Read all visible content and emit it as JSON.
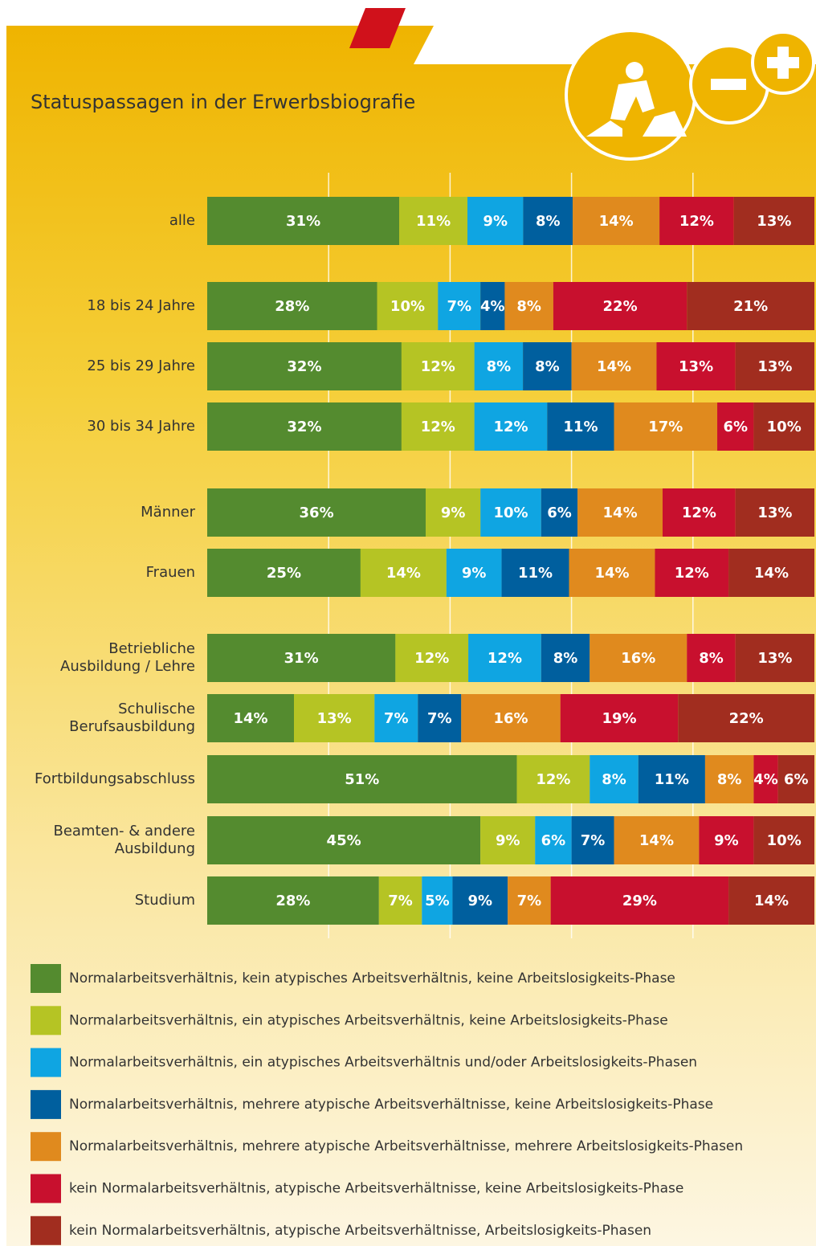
{
  "chart_data": {
    "type": "bar",
    "orientation": "horizontal",
    "stacked": "percent",
    "title": "Statuspassagen in der Erwerbsbiografie",
    "categories": [
      "alle",
      "18 bis 24 Jahre",
      "25 bis 29 Jahre",
      "30 bis 34 Jahre",
      "Männer",
      "Frauen",
      "Betriebliche\nAusbildung / Lehre",
      "Schulische\nBerufsausbildung",
      "Fortbildungsabschluss",
      "Beamten- & andere\nAusbildung",
      "Studium"
    ],
    "xlim": [
      0,
      100
    ],
    "xticks": [
      20,
      40,
      60,
      80
    ],
    "tick_labels": false,
    "grid": true,
    "series": [
      {
        "name": "Normalarbeitsverhältnis, kein atypisches Arbeitsverhältnis, keine Arbeitslosigkeits-Phase",
        "color": "#548b2f",
        "values": [
          31,
          28,
          32,
          32,
          36,
          25,
          31,
          14,
          51,
          45,
          28
        ],
        "value_labels": [
          "31%",
          "28%",
          "32%",
          "32%",
          "36%",
          "25%",
          "31%",
          "14%",
          "51%",
          "45%",
          "28%"
        ]
      },
      {
        "name": "Normalarbeitsverhältnis, ein atypisches Arbeitsverhältnis, keine Arbeitslosigkeits-Phase",
        "color": "#b5c424",
        "values": [
          11,
          10,
          12,
          12,
          9,
          14,
          12,
          13,
          12,
          9,
          7
        ],
        "value_labels": [
          "11%",
          "10%",
          "12%",
          "12%",
          "9%",
          "14%",
          "12%",
          "13%",
          "12%",
          "9%",
          "7%"
        ]
      },
      {
        "name": "Normalarbeitsverhältnis, ein atypisches Arbeitsverhältnis und/oder Arbeitslosigkeits-Phasen",
        "color": "#0fa5e2",
        "values": [
          9,
          7,
          8,
          12,
          10,
          9,
          12,
          7,
          8,
          6,
          5
        ],
        "value_labels": [
          "9%",
          "7%",
          "8%",
          "12%",
          "10%",
          "9%",
          "12%",
          "7%",
          "8%",
          "6%",
          "5%"
        ]
      },
      {
        "name": "Normalarbeitsverhältnis, mehrere atypische Arbeitsverhältnisse, keine Arbeitslosigkeits-Phase",
        "color": "#005f9e",
        "values": [
          8,
          4,
          8,
          11,
          6,
          11,
          8,
          7,
          11,
          7,
          9
        ],
        "value_labels": [
          "8%",
          "4%",
          "8%",
          "11%",
          "6%",
          "11%",
          "8%",
          "7%",
          "11%",
          "7%",
          "9%"
        ]
      },
      {
        "name": "Normalarbeitsverhältnis, mehrere atypische Arbeitsverhältnisse, mehrere Arbeitslosigkeits-Phasen",
        "color": "#e08a1e",
        "values": [
          14,
          8,
          14,
          17,
          14,
          14,
          16,
          16,
          8,
          14,
          7
        ],
        "value_labels": [
          "14%",
          "8%",
          "14%",
          "17%",
          "14%",
          "14%",
          "16%",
          "16%",
          "8%",
          "14%",
          "7%"
        ]
      },
      {
        "name": "kein Normalarbeitsverhältnis, atypische Arbeitsverhältnisse, keine Arbeitslosigkeits-Phase",
        "color": "#c8102e",
        "values": [
          12,
          22,
          13,
          6,
          12,
          12,
          8,
          19,
          4,
          9,
          29
        ],
        "value_labels": [
          "12%",
          "22%",
          "13%",
          "6%",
          "12%",
          "12%",
          "8%",
          "19%",
          "4%",
          "9%",
          "29%"
        ]
      },
      {
        "name": "kein Normalarbeitsverhältnis, atypische Arbeitsverhältnisse, Arbeitslosigkeits-Phasen",
        "color": "#a12d1f",
        "values": [
          13,
          21,
          13,
          10,
          13,
          14,
          13,
          22,
          6,
          10,
          14
        ],
        "value_labels": [
          "13%",
          "21%",
          "13%",
          "10%",
          "13%",
          "14%",
          "13%",
          "22%",
          "6%",
          "10%",
          "14%"
        ]
      }
    ]
  }
}
